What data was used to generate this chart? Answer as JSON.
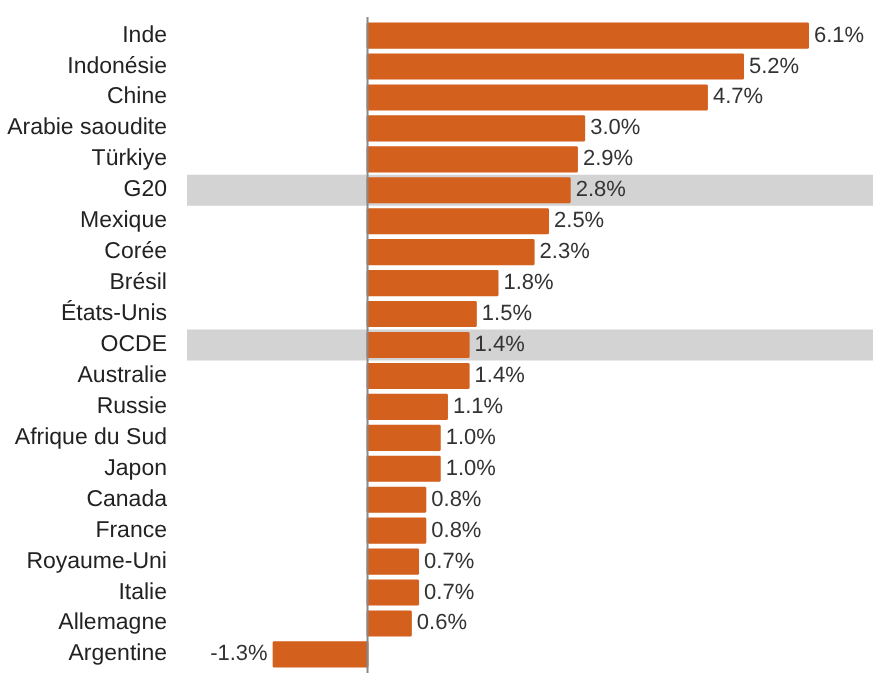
{
  "chart_data": {
    "type": "bar",
    "orientation": "horizontal",
    "categories": [
      "Inde",
      "Indonésie",
      "Chine",
      "Arabie saoudite",
      "Türkiye",
      "G20",
      "Mexique",
      "Corée",
      "Brésil",
      "États-Unis",
      "OCDE",
      "Australie",
      "Russie",
      "Afrique du Sud",
      "Japon",
      "Canada",
      "France",
      "Royaume-Uni",
      "Italie",
      "Allemagne",
      "Argentine"
    ],
    "values": [
      6.1,
      5.2,
      4.7,
      3.0,
      2.9,
      2.8,
      2.5,
      2.3,
      1.8,
      1.5,
      1.4,
      1.4,
      1.1,
      1.0,
      1.0,
      0.8,
      0.8,
      0.7,
      0.7,
      0.6,
      -1.3
    ],
    "value_labels": [
      "6.1%",
      "5.2%",
      "4.7%",
      "3.0%",
      "2.9%",
      "2.8%",
      "2.5%",
      "2.3%",
      "1.8%",
      "1.5%",
      "1.4%",
      "1.4%",
      "1.1%",
      "1.0%",
      "1.0%",
      "0.8%",
      "0.8%",
      "0.7%",
      "0.7%",
      "0.6%",
      "-1.3%"
    ],
    "color": "#d4601e",
    "xlim": [
      -2.5,
      7.0
    ],
    "tick_labels": "y",
    "grid": false,
    "bands": [
      {
        "axis": "y",
        "from": "G20",
        "to": "G20",
        "color": "#d3d3d3"
      },
      {
        "axis": "y",
        "from": "OCDE",
        "to": "OCDE",
        "color": "#d3d3d3"
      }
    ]
  }
}
